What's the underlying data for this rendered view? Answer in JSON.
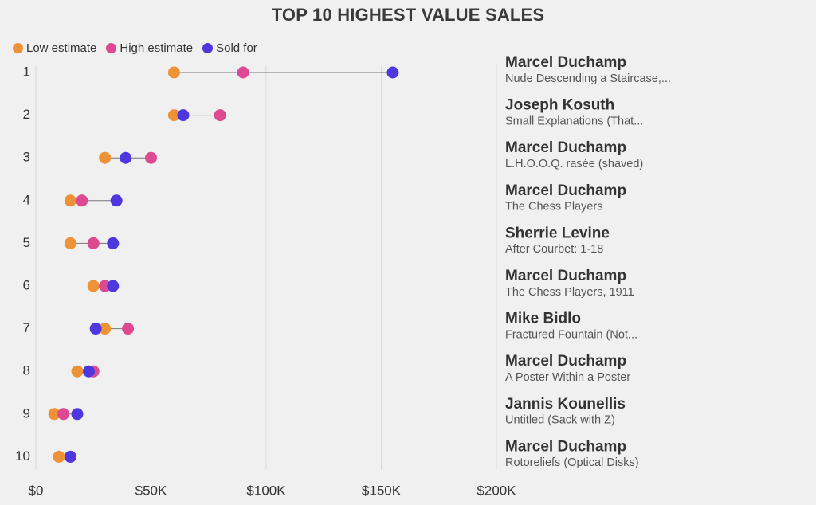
{
  "chart_data": {
    "type": "scatter",
    "subtype": "dumbbell",
    "title": "TOP 10 HIGHEST VALUE SALES",
    "xlabel": "",
    "ylabel": "",
    "xlim": [
      0,
      200000
    ],
    "xticks": [
      0,
      50000,
      100000,
      150000,
      200000
    ],
    "xtick_labels": [
      "$0",
      "$50K",
      "$100K",
      "$150K",
      "$200K"
    ],
    "grid": true,
    "legend_position": "top-left",
    "series": [
      {
        "key": "low",
        "name": "Low estimate",
        "color": "#ee9235"
      },
      {
        "key": "high",
        "name": "High estimate",
        "color": "#dd4a92"
      },
      {
        "key": "sold",
        "name": "Sold for",
        "color": "#4f37e0"
      }
    ],
    "rows": [
      {
        "rank": "1",
        "artist": "Marcel Duchamp",
        "work": "Nude Descending a Staircase,...",
        "low": 60000,
        "high": 90000,
        "sold": 155000
      },
      {
        "rank": "2",
        "artist": "Joseph Kosuth",
        "work": "Small Explanations (That...",
        "low": 60000,
        "high": 80000,
        "sold": 64000
      },
      {
        "rank": "3",
        "artist": "Marcel Duchamp",
        "work": "L.H.O.O.Q. rasée (shaved)",
        "low": 30000,
        "high": 50000,
        "sold": 39000
      },
      {
        "rank": "4",
        "artist": "Marcel Duchamp",
        "work": "The Chess Players",
        "low": 15000,
        "high": 20000,
        "sold": 35000
      },
      {
        "rank": "5",
        "artist": "Sherrie Levine",
        "work": "After Courbet: 1-18",
        "low": 15000,
        "high": 25000,
        "sold": 33500
      },
      {
        "rank": "6",
        "artist": "Marcel Duchamp",
        "work": "The Chess Players, 1911",
        "low": 25000,
        "high": 30000,
        "sold": 33500
      },
      {
        "rank": "7",
        "artist": "Mike Bidlo",
        "work": "Fractured Fountain (Not...",
        "low": 30000,
        "high": 40000,
        "sold": 26000
      },
      {
        "rank": "8",
        "artist": "Marcel Duchamp",
        "work": "A Poster Within a Poster",
        "low": 18000,
        "high": 25000,
        "sold": 23000
      },
      {
        "rank": "9",
        "artist": "Jannis Kounellis",
        "work": "Untitled (Sack with Z)",
        "low": 8000,
        "high": 12000,
        "sold": 18000
      },
      {
        "rank": "10",
        "artist": "Marcel Duchamp",
        "work": "Rotoreliefs (Optical Disks)",
        "low": 10000,
        "high": 15000,
        "sold": 15000
      }
    ]
  }
}
